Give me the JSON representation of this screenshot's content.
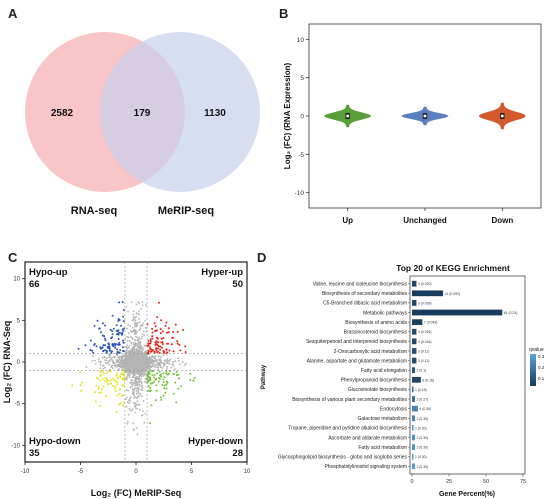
{
  "panels": {
    "a": "A",
    "b": "B",
    "c": "C",
    "d": "D"
  },
  "colors": {
    "venn_left": "#f4a6aa",
    "venn_right": "#c7d0ec",
    "violin_up": "#5a9e3a",
    "violin_unchanged": "#5b7fbf",
    "violin_down": "#d45a2e",
    "scatter_grey": "#b4b4b4",
    "scatter_blue": "#2d56b8",
    "scatter_red": "#e0261c",
    "scatter_yellow": "#e6e42a",
    "scatter_green": "#74c43d",
    "bar_dark": "#173b5c",
    "bar_light": "#59a5dd"
  },
  "chart_data": [
    {
      "type": "venn",
      "sets": [
        {
          "name": "RNA-seq",
          "only": 2582
        },
        {
          "name": "MeRIP-seq",
          "only": 1130
        }
      ],
      "overlap": 179
    },
    {
      "type": "violin",
      "ylabel": "Log₂ (FC)  (RNA Expression)",
      "ylim": [
        -12,
        12
      ],
      "yticks": [
        -10,
        -5,
        0,
        5,
        10
      ],
      "categories": [
        "Up",
        "Unchanged",
        "Down"
      ],
      "medians": [
        0,
        0,
        0
      ],
      "color_keys": [
        "violin_up",
        "violin_unchanged",
        "violin_down"
      ]
    },
    {
      "type": "scatter",
      "xlabel": "Log₂ (FC) MeRIP-Seq",
      "ylabel": "Log₂ (FC) RNA-Seq",
      "xlim": [
        -10,
        10
      ],
      "ylim": [
        -12,
        12
      ],
      "xticks": [
        -10,
        -5,
        0,
        5,
        10
      ],
      "yticks": [
        -10,
        -5,
        0,
        5,
        10
      ],
      "thresholds": {
        "x": [
          -1,
          1
        ],
        "y": [
          -1,
          1
        ]
      },
      "quadrants": [
        {
          "label": "Hypo-up",
          "count": "66",
          "position": "top-left"
        },
        {
          "label": "Hyper-up",
          "count": "50",
          "position": "top-right"
        },
        {
          "label": "Hypo-down",
          "count": "35",
          "position": "bottom-left"
        },
        {
          "label": "Hyper-down",
          "count": "28",
          "position": "bottom-right"
        }
      ]
    },
    {
      "type": "bar",
      "title": "Top 20 of KEGG Enrichment",
      "xlabel": "Gene Percent(%)",
      "ylabel": "Pathway",
      "xlim": [
        0,
        75
      ],
      "xticks": [
        0,
        25,
        50,
        75
      ],
      "legend": {
        "title": "qvalue",
        "ticks": [
          "0.3",
          "0.2",
          "0.1"
        ],
        "position": "right"
      },
      "categories": [
        "Valine, leucine and isoleucine biosynthesis",
        "Biosynthesis of secondary metabolites",
        "C5-Branched dibasic acid metabolism",
        "Metabolic pathways",
        "Biosynthesis of amino acids",
        "Brassinosteroid biosynthesis",
        "Sesquiterpenoid and triterpenoid biosynthesis",
        "2-Oxocarboxylic acid metabolism",
        "Alanine, aspartate and glutamate metabolism",
        "Fatty acid elongation",
        "Phenylpropanoid biosynthesis",
        "Glucosinolate biosynthesis",
        "Biosynthesis of various plant secondary metabolites",
        "Endocytosis",
        "Galactose metabolism",
        "Tropane, piperidine and pyridine alkaloid biosynthesis",
        "Ascorbate and aldarate metabolism",
        "Fatty acid metabolism",
        "Glycosphingolipid biosynthesis - globo and isoglobo series",
        "Phosphatidylinositol signaling system"
      ],
      "values": [
        3,
        21,
        3,
        61,
        7,
        3,
        3,
        3,
        3,
        2,
        6,
        1,
        2,
        4,
        2,
        1,
        2,
        2,
        1,
        2
      ],
      "qvalues": [
        0.05,
        0.02,
        0.05,
        0.02,
        0.03,
        0.06,
        0.06,
        0.07,
        0.07,
        0.08,
        0.05,
        0.12,
        0.15,
        0.22,
        0.22,
        0.26,
        0.26,
        0.26,
        0.28,
        0.28
      ],
      "bar_labels": [
        "3 (0.020)",
        "21 (0.092)",
        "3 (0.039)",
        "61 (0.24)",
        "7 (0.043)",
        "3 (0.016)",
        "3 (0.016)",
        "3 (0.11)",
        "3 (0.11)",
        "2 (0.1)",
        "6 (0.16)",
        "1 (0.16)",
        "2 (0.27)",
        "4 (0.30)",
        "2 (0.30)",
        "1 (0.30)",
        "2 (0.30)",
        "2 (0.30)",
        "1 (0.30)",
        "2 (0.30)"
      ]
    }
  ]
}
